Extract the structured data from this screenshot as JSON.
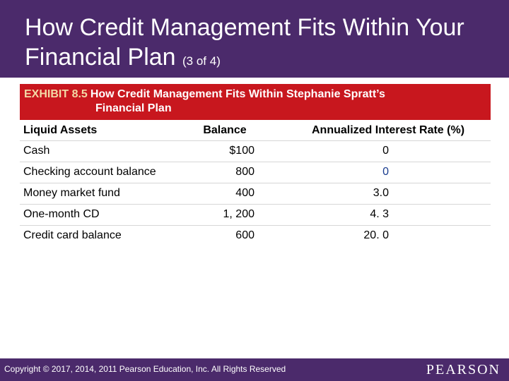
{
  "slide": {
    "title_main": "How Credit Management Fits Within Your Financial Plan",
    "title_suffix": "(3 of 4)"
  },
  "exhibit": {
    "label": "EXHIBIT 8.5",
    "title_line1": "How Credit Management Fits Within Stephanie Spratt’s",
    "title_line2": "Financial Plan"
  },
  "table": {
    "headers": [
      "Liquid Assets",
      "Balance",
      "Annualized Interest Rate (%)"
    ],
    "rows": [
      {
        "asset": "Cash",
        "balance": "$100",
        "rate": "0"
      },
      {
        "asset": "Checking account balance",
        "balance": "800",
        "rate": "0"
      },
      {
        "asset": "Money market fund",
        "balance": "400",
        "rate": "3.0"
      },
      {
        "asset": "One-month CD",
        "balance": "1, 200",
        "rate": "4. 3"
      },
      {
        "asset": "Credit card balance",
        "balance": "600",
        "rate": "20. 0"
      }
    ]
  },
  "footer": {
    "copyright": "Copyright © 2017, 2014, 2011 Pearson Education, Inc. All Rights Reserved",
    "brand": "PEARSON"
  },
  "colors": {
    "title_bar": "#4b2a6b",
    "exhibit_bar": "#c8171e",
    "exhibit_label": "#f3d9a6"
  }
}
